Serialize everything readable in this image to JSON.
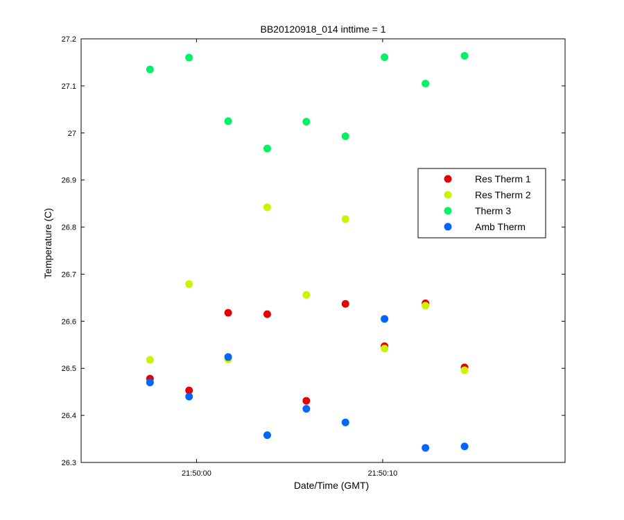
{
  "chart_data": {
    "type": "scatter",
    "title": "BB20120918_014 inttime = 1",
    "xlabel": "Date/Time (GMT)",
    "ylabel": "Temperature (C)",
    "x_unit": "time",
    "xlim": [
      "21:49:53.8",
      "21:50:19.8"
    ],
    "ylim": [
      26.3,
      27.2
    ],
    "x_ticks": [
      {
        "value": "21:50:00",
        "label": "21:50:00"
      },
      {
        "value": "21:50:10",
        "label": "21:50:10"
      }
    ],
    "y_ticks": [
      "26.3",
      "26.4",
      "26.5",
      "26.6",
      "26.7",
      "26.8",
      "26.9",
      "27",
      "27.1",
      "27.2"
    ],
    "x": [
      "21:49:57.5",
      "21:49:59.6",
      "21:50:01.7",
      "21:50:03.8",
      "21:50:05.9",
      "21:50:08.0",
      "21:50:10.1",
      "21:50:12.3",
      "21:50:14.4"
    ],
    "grid": false,
    "legend_position": "right",
    "series": [
      {
        "name": "Res Therm 1",
        "color": "#e60000",
        "x": [
          "21:49:57.5",
          "21:49:59.6",
          "21:50:01.7",
          "21:50:03.8",
          "21:50:05.9",
          "21:50:08.0",
          "21:50:10.1",
          "21:50:12.3",
          "21:50:14.4"
        ],
        "values": [
          26.478,
          26.453,
          26.618,
          26.615,
          26.431,
          26.637,
          26.547,
          26.638,
          26.502
        ]
      },
      {
        "name": "Res Therm 2",
        "color": "#ccf200",
        "x": [
          "21:49:57.5",
          "21:49:59.6",
          "21:50:01.7",
          "21:50:03.8",
          "21:50:05.9",
          "21:50:08.0",
          "21:50:10.1",
          "21:50:12.3",
          "21:50:14.4"
        ],
        "values": [
          26.518,
          26.679,
          26.519,
          26.842,
          26.656,
          26.817,
          26.542,
          26.633,
          26.496
        ]
      },
      {
        "name": "Therm 3",
        "color": "#00f266",
        "x": [
          "21:49:57.5",
          "21:49:59.6",
          "21:50:01.7",
          "21:50:03.8",
          "21:50:05.9",
          "21:50:08.0",
          "21:50:10.1",
          "21:50:12.3",
          "21:50:14.4"
        ],
        "values": [
          27.135,
          27.16,
          27.025,
          26.967,
          27.024,
          26.993,
          27.161,
          27.105,
          27.164
        ]
      },
      {
        "name": "Amb Therm",
        "color": "#0066ff",
        "x": [
          "21:49:57.5",
          "21:49:59.6",
          "21:50:01.7",
          "21:50:03.8",
          "21:50:05.9",
          "21:50:08.0",
          "21:50:10.1",
          "21:50:12.3",
          "21:50:14.4"
        ],
        "values": [
          26.47,
          26.44,
          26.524,
          26.358,
          26.414,
          26.385,
          26.605,
          26.331,
          26.334
        ]
      }
    ]
  }
}
